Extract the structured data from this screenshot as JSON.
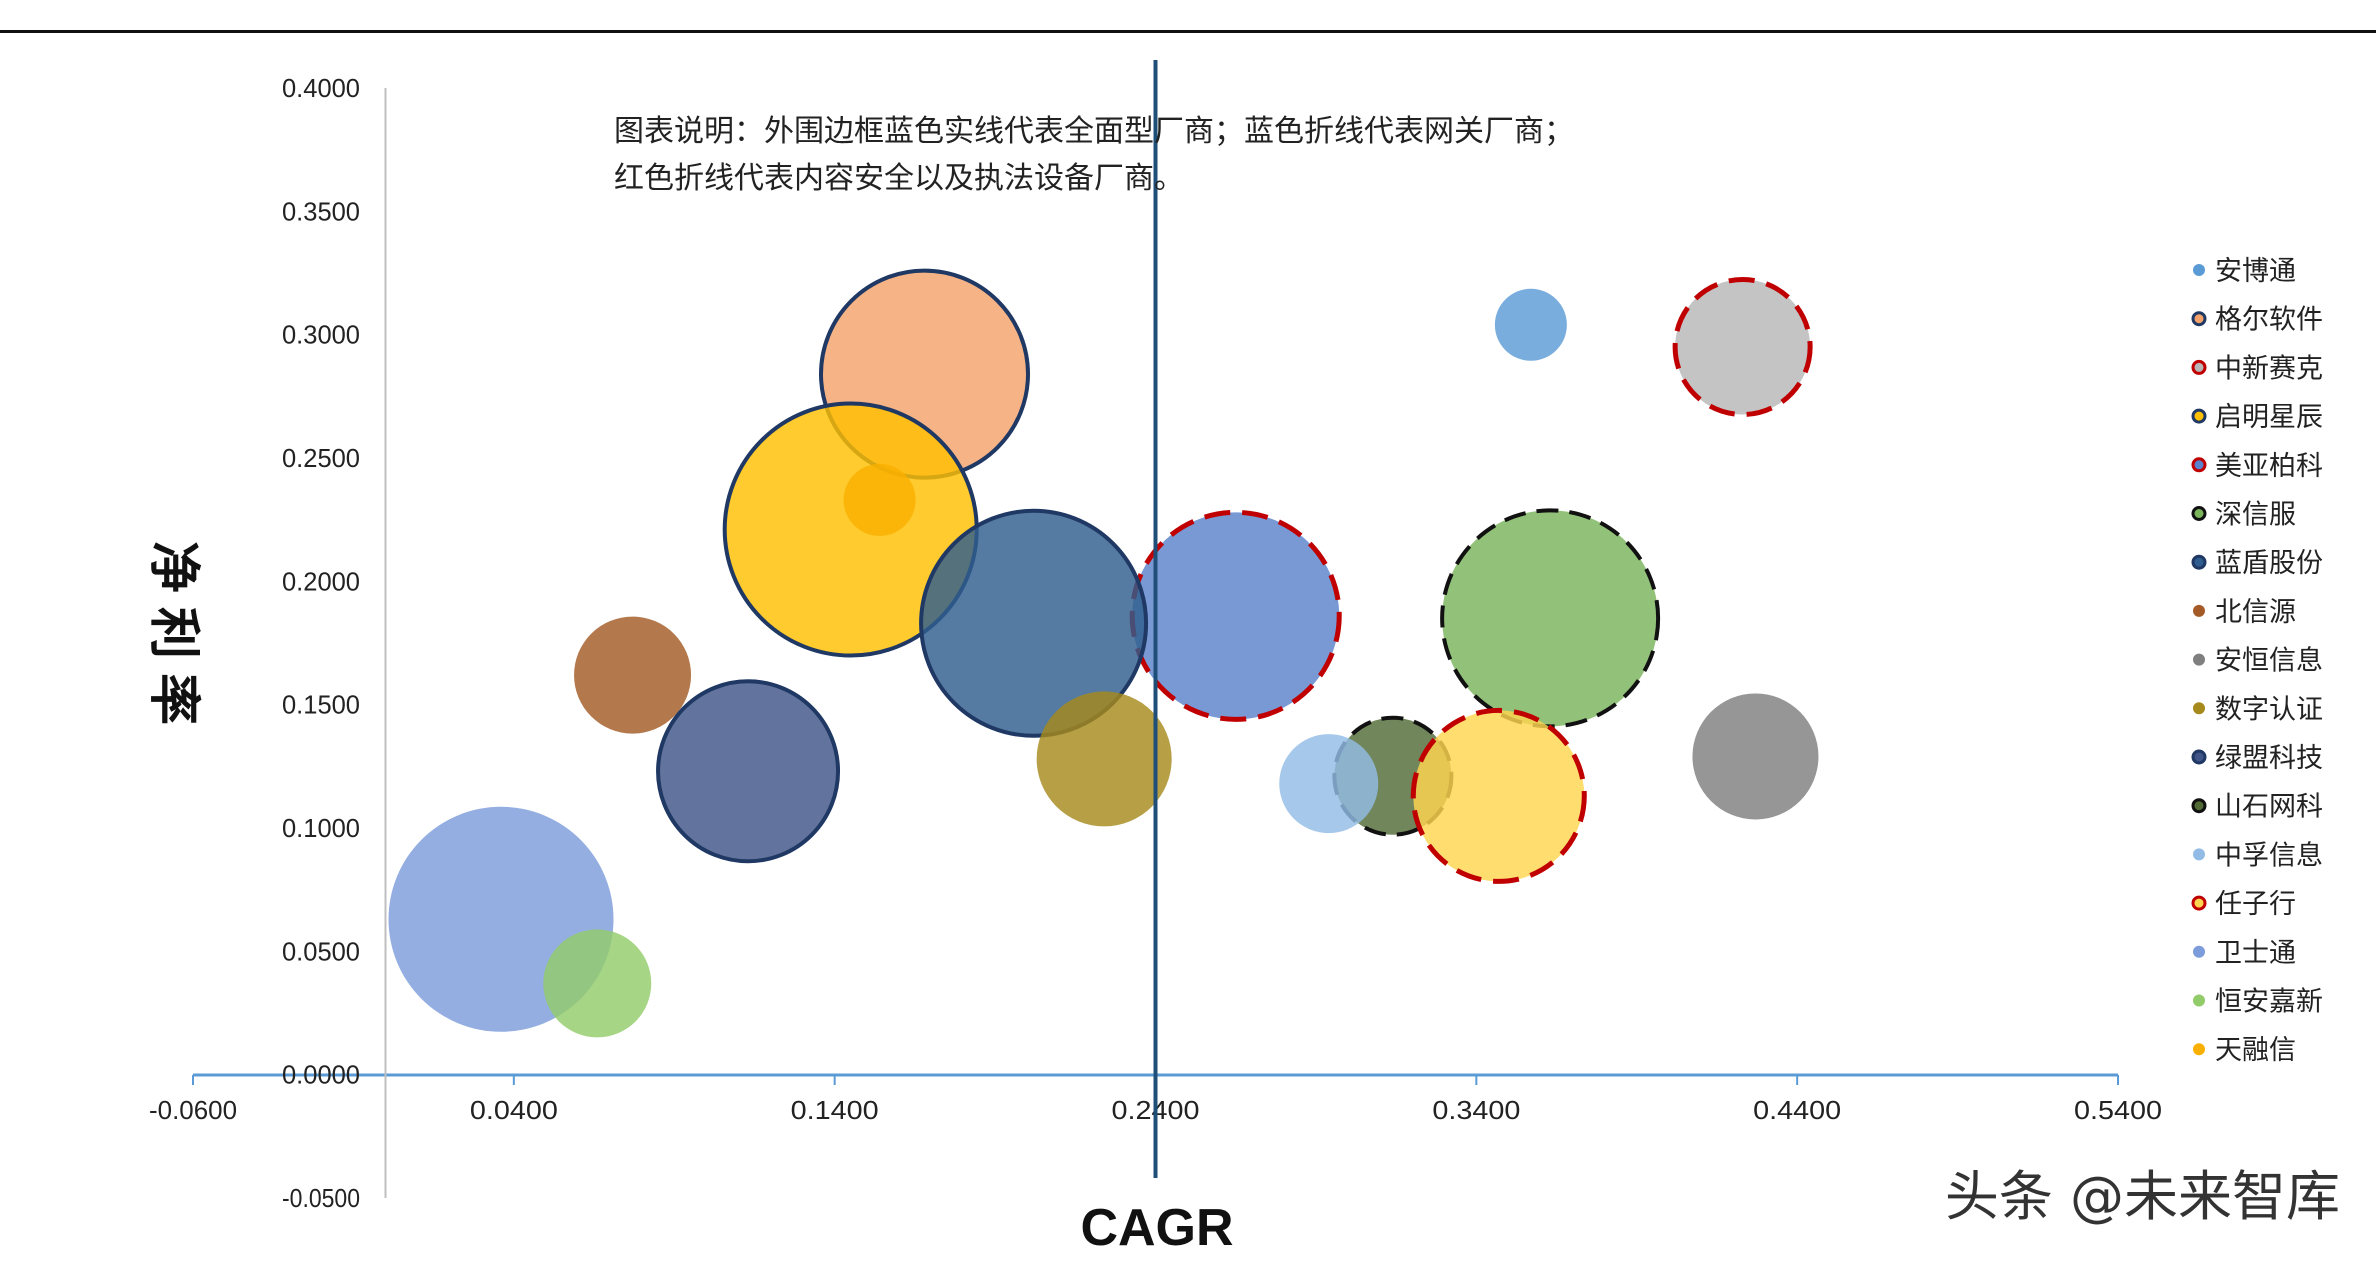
{
  "chart_data": {
    "type": "scatter",
    "bubble": true,
    "xlabel": "CAGR",
    "ylabel": "净利率",
    "xlim": [
      -0.06,
      0.54
    ],
    "ylim": [
      -0.05,
      0.4
    ],
    "x_ticks": [
      "-0.0600",
      "0.0400",
      "0.1400",
      "0.2400",
      "0.3400",
      "0.4400",
      "0.5400"
    ],
    "y_ticks": [
      "0.4000",
      "0.3500",
      "0.3000",
      "0.2500",
      "0.2000",
      "0.1500",
      "0.1000",
      "0.0500",
      "0.0000",
      "-0.0500"
    ],
    "x_tick_values": [
      -0.06,
      0.04,
      0.14,
      0.24,
      0.34,
      0.44,
      0.54
    ],
    "y_tick_values": [
      0.4,
      0.35,
      0.3,
      0.25,
      0.2,
      0.15,
      0.1,
      0.05,
      0.0,
      -0.05
    ],
    "reference_line_x": 0.24,
    "note_lines": [
      "图表说明：外围边框蓝色实线代表全面型厂商；蓝色折线代表网关厂商；",
      "红色折线代表内容安全以及执法设备厂商。"
    ],
    "legend_position": "right",
    "grid": false,
    "series": [
      {
        "name": "安博通",
        "x": 0.357,
        "y": 0.304,
        "size": 0.8,
        "color": "#5B9BD5",
        "border": "none"
      },
      {
        "name": "格尔软件",
        "x": 0.168,
        "y": 0.284,
        "size": 2.3,
        "color": "#F4A26A",
        "border": "solid"
      },
      {
        "name": "中新赛克",
        "x": 0.423,
        "y": 0.295,
        "size": 1.5,
        "color": "#B7B7B7",
        "border": "red-dash"
      },
      {
        "name": "启明星辰",
        "x": 0.145,
        "y": 0.221,
        "size": 2.8,
        "color": "#FFC000",
        "border": "solid"
      },
      {
        "name": "美亚柏科",
        "x": 0.265,
        "y": 0.186,
        "size": 2.3,
        "color": "#5B82CC",
        "border": "red-dash"
      },
      {
        "name": "深信服",
        "x": 0.363,
        "y": 0.185,
        "size": 2.4,
        "color": "#7AB55C",
        "border": "black-dash"
      },
      {
        "name": "蓝盾股份",
        "x": 0.202,
        "y": 0.183,
        "size": 2.5,
        "color": "#2F5E8E",
        "border": "solid"
      },
      {
        "name": "北信源",
        "x": 0.077,
        "y": 0.162,
        "size": 1.3,
        "color": "#A45A26",
        "border": "none"
      },
      {
        "name": "安恒信息",
        "x": 0.427,
        "y": 0.129,
        "size": 1.4,
        "color": "#7F7F7F",
        "border": "none"
      },
      {
        "name": "数字认证",
        "x": 0.224,
        "y": 0.128,
        "size": 1.5,
        "color": "#A68A1C",
        "border": "none"
      },
      {
        "name": "绿盟科技",
        "x": 0.113,
        "y": 0.123,
        "size": 2.0,
        "color": "#3F5588",
        "border": "solid"
      },
      {
        "name": "山石网科",
        "x": 0.314,
        "y": 0.121,
        "size": 1.3,
        "color": "#526B36",
        "border": "black-dash"
      },
      {
        "name": "中孚信息",
        "x": 0.294,
        "y": 0.118,
        "size": 1.1,
        "color": "#92BCE5",
        "border": "none"
      },
      {
        "name": "任子行",
        "x": 0.347,
        "y": 0.113,
        "size": 1.9,
        "color": "#FFD54F",
        "border": "red-dash"
      },
      {
        "name": "卫士通",
        "x": 0.036,
        "y": 0.063,
        "size": 2.5,
        "color": "#7C9CDB",
        "border": "none"
      },
      {
        "name": "恒安嘉新",
        "x": 0.066,
        "y": 0.037,
        "size": 1.2,
        "color": "#92CC6A",
        "border": "none"
      },
      {
        "name": "天融信",
        "x": 0.154,
        "y": 0.233,
        "size": 0.8,
        "color": "#F9B000",
        "border": "none"
      }
    ]
  },
  "watermark": "头条 @未来智库"
}
